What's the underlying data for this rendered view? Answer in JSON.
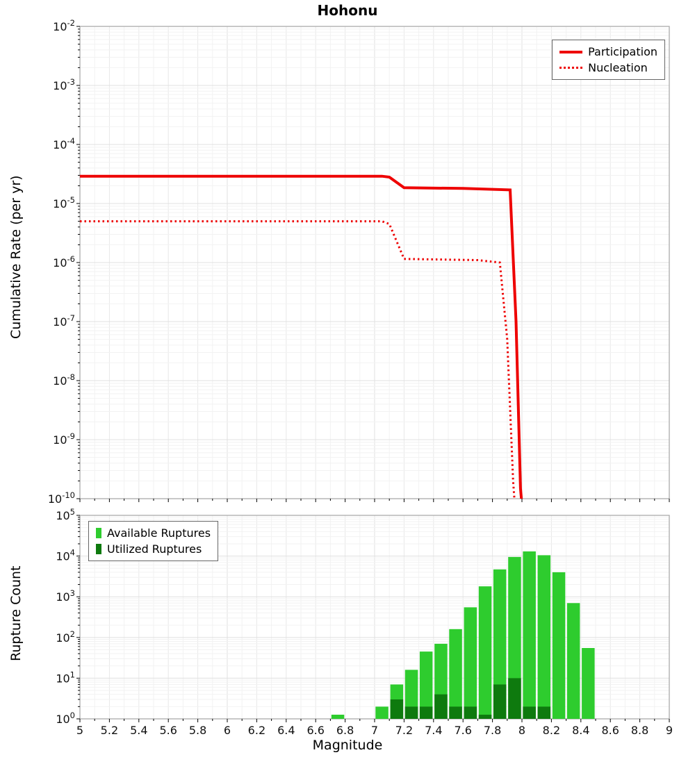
{
  "title": "Hohonu",
  "axes": {
    "x_label": "Magnitude",
    "x_ticks": [
      "5",
      "5.2",
      "5.4",
      "5.6",
      "5.8",
      "6",
      "6.2",
      "6.4",
      "6.6",
      "6.8",
      "7",
      "7.2",
      "7.4",
      "7.6",
      "7.8",
      "8",
      "8.2",
      "8.4",
      "8.6",
      "8.8",
      "9"
    ],
    "top_y_label": "Cumulative Rate (per yr)",
    "top_y_tick_exponents": [
      -2,
      -3,
      -4,
      -5,
      -6,
      -7,
      -8,
      -9,
      -10
    ],
    "bottom_y_label": "Rupture Count",
    "bottom_y_tick_exponents": [
      5,
      4,
      3,
      2,
      1,
      0
    ]
  },
  "colors": {
    "line_red": "#ee0000",
    "available_green": "#2ecc2e",
    "utilized_green": "#0e7a0e",
    "grid_major": "#e0e0e0",
    "grid_minor": "#f2f2f2",
    "frame": "#ababab"
  },
  "chart_data": [
    {
      "type": "line",
      "title": "Hohonu",
      "xlabel": "Magnitude",
      "ylabel": "Cumulative Rate (per yr)",
      "xlim": [
        5,
        9
      ],
      "ylim": [
        1e-10,
        0.01
      ],
      "yscale": "log",
      "grid": true,
      "legend_position": "top-right",
      "series": [
        {
          "name": "Participation",
          "style": "solid",
          "color": "#ee0000",
          "points": [
            [
              5.0,
              2.9e-05
            ],
            [
              7.05,
              2.9e-05
            ],
            [
              7.1,
              2.8e-05
            ],
            [
              7.2,
              1.85e-05
            ],
            [
              7.6,
              1.8e-05
            ],
            [
              7.92,
              1.7e-05
            ],
            [
              7.96,
              1e-07
            ],
            [
              7.99,
              1.5e-10
            ],
            [
              8.01,
              4e-11
            ]
          ]
        },
        {
          "name": "Nucleation",
          "style": "dotted",
          "color": "#ee0000",
          "points": [
            [
              5.0,
              5e-06
            ],
            [
              7.05,
              5e-06
            ],
            [
              7.1,
              4.5e-06
            ],
            [
              7.2,
              1.15e-06
            ],
            [
              7.7,
              1.1e-06
            ],
            [
              7.85,
              1e-06
            ],
            [
              7.9,
              5e-08
            ],
            [
              7.94,
              2e-10
            ],
            [
              7.96,
              4e-11
            ]
          ]
        }
      ]
    },
    {
      "type": "bar",
      "xlabel": "Magnitude",
      "ylabel": "Rupture Count",
      "xlim": [
        5,
        9
      ],
      "ylim": [
        1,
        100000
      ],
      "yscale": "log",
      "grid": true,
      "legend_position": "top-left",
      "bin_width": 0.1,
      "categories": [
        6.75,
        7.05,
        7.15,
        7.25,
        7.35,
        7.45,
        7.55,
        7.65,
        7.75,
        7.85,
        7.95,
        8.05,
        8.15,
        8.25,
        8.35,
        8.45
      ],
      "series": [
        {
          "name": "Available Ruptures",
          "color": "#2ecc2e",
          "values": [
            1,
            2,
            7,
            16,
            45,
            70,
            160,
            550,
            1800,
            4700,
            9500,
            13000,
            10500,
            4000,
            700,
            55
          ]
        },
        {
          "name": "Utilized Ruptures",
          "color": "#0e7a0e",
          "values": [
            0,
            0,
            3,
            2,
            2,
            4,
            2,
            2,
            1,
            7,
            10,
            2,
            2,
            0,
            0,
            0
          ]
        }
      ]
    }
  ]
}
